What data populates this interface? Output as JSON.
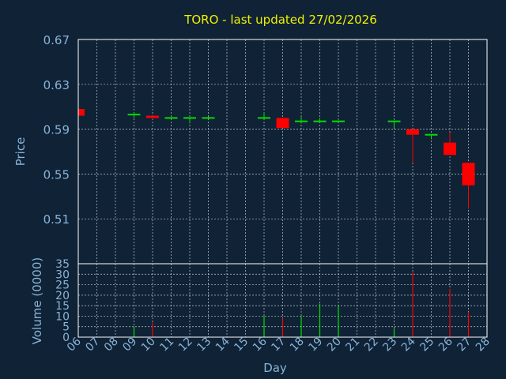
{
  "title": "TORO - last updated 27/02/2026",
  "colors": {
    "background": "#0f2236",
    "up": "#00e000",
    "down": "#ff0000",
    "text": "#8ab4d8",
    "title": "#f0f000"
  },
  "chart_data": [
    {
      "type": "candlestick",
      "ylabel": "Price",
      "ylim": [
        0.47,
        0.67
      ],
      "yticks": [
        "0.67",
        "0.63",
        "0.59",
        "0.55",
        "0.51"
      ],
      "grid": true,
      "candles": [
        {
          "day": "06",
          "open": 0.608,
          "close": 0.602,
          "high": 0.608,
          "low": 0.602,
          "dir": "down"
        },
        {
          "day": "09",
          "open": 0.602,
          "close": 0.603,
          "high": 0.605,
          "low": 0.6,
          "dir": "up"
        },
        {
          "day": "10",
          "open": 0.602,
          "close": 0.6,
          "high": 0.602,
          "low": 0.599,
          "dir": "down"
        },
        {
          "day": "11",
          "open": 0.6,
          "close": 0.6,
          "high": 0.6,
          "low": 0.599,
          "dir": "up"
        },
        {
          "day": "12",
          "open": 0.6,
          "close": 0.6,
          "high": 0.6,
          "low": 0.595,
          "dir": "up"
        },
        {
          "day": "13",
          "open": 0.6,
          "close": 0.6,
          "high": 0.601,
          "low": 0.6,
          "dir": "up"
        },
        {
          "day": "16",
          "open": 0.6,
          "close": 0.6,
          "high": 0.605,
          "low": 0.599,
          "dir": "up"
        },
        {
          "day": "17",
          "open": 0.6,
          "close": 0.591,
          "high": 0.6,
          "low": 0.591,
          "dir": "down"
        },
        {
          "day": "18",
          "open": 0.597,
          "close": 0.597,
          "high": 0.601,
          "low": 0.595,
          "dir": "up"
        },
        {
          "day": "19",
          "open": 0.597,
          "close": 0.597,
          "high": 0.6,
          "low": 0.596,
          "dir": "up"
        },
        {
          "day": "20",
          "open": 0.597,
          "close": 0.597,
          "high": 0.597,
          "low": 0.596,
          "dir": "up"
        },
        {
          "day": "23",
          "open": 0.597,
          "close": 0.597,
          "high": 0.597,
          "low": 0.59,
          "dir": "up"
        },
        {
          "day": "24",
          "open": 0.59,
          "close": 0.585,
          "high": 0.59,
          "low": 0.56,
          "dir": "down"
        },
        {
          "day": "25",
          "open": 0.585,
          "close": 0.585,
          "high": 0.585,
          "low": 0.581,
          "dir": "up"
        },
        {
          "day": "26",
          "open": 0.578,
          "close": 0.567,
          "high": 0.587,
          "low": 0.567,
          "dir": "down"
        },
        {
          "day": "27",
          "open": 0.56,
          "close": 0.54,
          "high": 0.56,
          "low": 0.519,
          "dir": "down"
        }
      ]
    },
    {
      "type": "bar",
      "ylabel": "Volume (0000)",
      "xlabel": "Day",
      "ylim": [
        0,
        35
      ],
      "yticks": [
        "35",
        "30",
        "25",
        "20",
        "15",
        "10",
        "5",
        "0"
      ],
      "grid": true,
      "categories": [
        "06",
        "07",
        "08",
        "09",
        "10",
        "11",
        "12",
        "13",
        "14",
        "15",
        "16",
        "17",
        "18",
        "19",
        "20",
        "21",
        "22",
        "23",
        "24",
        "25",
        "26",
        "27",
        "28"
      ],
      "volumes": [
        {
          "day": "09",
          "value": 5,
          "dir": "up"
        },
        {
          "day": "10",
          "value": 7,
          "dir": "down"
        },
        {
          "day": "16",
          "value": 10,
          "dir": "up"
        },
        {
          "day": "17",
          "value": 9,
          "dir": "down"
        },
        {
          "day": "18",
          "value": 10,
          "dir": "up"
        },
        {
          "day": "19",
          "value": 16,
          "dir": "up"
        },
        {
          "day": "20",
          "value": 15,
          "dir": "up"
        },
        {
          "day": "23",
          "value": 4,
          "dir": "up"
        },
        {
          "day": "24",
          "value": 31,
          "dir": "down"
        },
        {
          "day": "26",
          "value": 23,
          "dir": "down"
        },
        {
          "day": "27",
          "value": 12,
          "dir": "down"
        }
      ]
    }
  ]
}
